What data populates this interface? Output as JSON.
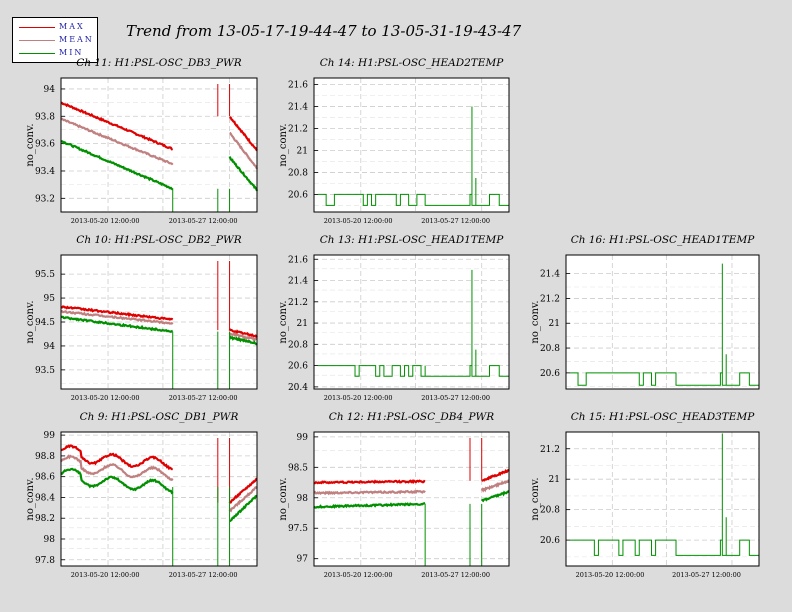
{
  "title": "Trend from 13-05-17-19-44-47 to 13-05-31-19-43-47",
  "legend": [
    {
      "label": "MAX",
      "color": "#e00000"
    },
    {
      "label": "MEAN",
      "color": "#c08080"
    },
    {
      "label": "MIN",
      "color": "#009000"
    }
  ],
  "colors": {
    "max": "#e00000",
    "mean": "#c08080",
    "min": "#009000",
    "background": "#dcdcdc"
  },
  "chart_data": [
    {
      "type": "line",
      "title": "Ch 11: H1:PSL-OSC_DB3_PWR",
      "ylabel": "no_conv.",
      "x_ticks": [
        "2013-05-20 12:00:00",
        "2013-05-27 12:00:00"
      ],
      "y_ticks": [
        "94",
        "93.8",
        "93.6",
        "93.4",
        "93.2"
      ],
      "ylim": [
        93.1,
        94.08
      ],
      "pattern": "decline",
      "grid": true,
      "series": [
        {
          "name": "MAX",
          "from": 93.9,
          "to": 93.56,
          "after_gap": [
            93.8,
            93.55
          ]
        },
        {
          "name": "MEAN",
          "from": 93.78,
          "to": 93.45,
          "after_gap": [
            93.68,
            93.42
          ]
        },
        {
          "name": "MIN",
          "from": 93.62,
          "to": 93.27,
          "after_gap": [
            93.5,
            93.26
          ]
        }
      ]
    },
    {
      "type": "line",
      "title": "Ch 14: H1:PSL-OSC_HEAD2TEMP",
      "ylabel": "no_conv.",
      "x_ticks": [
        "2013-05-20 12:00:00",
        "2013-05-27 12:00:00"
      ],
      "y_ticks": [
        "21.6",
        "21.4",
        "21.2",
        "21",
        "20.8",
        "20.6"
      ],
      "ylim": [
        20.44,
        21.66
      ],
      "pattern": "steps",
      "grid": true,
      "series": [
        {
          "name": "MIN",
          "base": 20.6,
          "low": 20.5,
          "peak": 21.4
        }
      ]
    },
    null,
    {
      "type": "line",
      "title": "Ch 10: H1:PSL-OSC_DB2_PWR",
      "ylabel": "no_conv.",
      "x_ticks": [
        "2013-05-20 12:00:00",
        "2013-05-27 12:00:00"
      ],
      "y_ticks": [
        "95.5",
        "95",
        "94.5",
        "94",
        "93.5"
      ],
      "ylim": [
        93.1,
        95.9
      ],
      "pattern": "decline",
      "grid": true,
      "series": [
        {
          "name": "MAX",
          "from": 94.82,
          "to": 94.55,
          "after_gap": [
            94.33,
            94.2
          ]
        },
        {
          "name": "MEAN",
          "from": 94.72,
          "to": 94.47,
          "after_gap": [
            94.26,
            94.13
          ]
        },
        {
          "name": "MIN",
          "from": 94.6,
          "to": 94.3,
          "after_gap": [
            94.18,
            94.05
          ]
        }
      ]
    },
    {
      "type": "line",
      "title": "Ch 13: H1:PSL-OSC_HEAD1TEMP",
      "ylabel": "no_conv.",
      "x_ticks": [
        "2013-05-20 12:00:00",
        "2013-05-27 12:00:00"
      ],
      "y_ticks": [
        "21.6",
        "21.4",
        "21.2",
        "21",
        "20.8",
        "20.6",
        "20.4"
      ],
      "ylim": [
        20.38,
        21.64
      ],
      "pattern": "steps",
      "grid": true,
      "series": [
        {
          "name": "MIN",
          "base": 20.6,
          "low": 20.5,
          "peak": 21.5
        }
      ]
    },
    {
      "type": "line",
      "title": "Ch 16: H1:PSL-OSC_HEAD1TEMP",
      "ylabel": "no_conv.",
      "x_ticks": [],
      "y_ticks": [
        "21.4",
        "21.2",
        "21",
        "20.8",
        "20.6"
      ],
      "ylim": [
        20.47,
        21.55
      ],
      "pattern": "steps",
      "grid": true,
      "series": [
        {
          "name": "MIN",
          "base": 20.6,
          "low": 20.5,
          "peak": 21.48
        }
      ]
    },
    {
      "type": "line",
      "title": "Ch 9: H1:PSL-OSC_DB1_PWR",
      "ylabel": "no_conv.",
      "x_ticks": [
        "2013-05-20 12:00:00",
        "2013-05-27 12:00:00"
      ],
      "y_ticks": [
        "99",
        "98.8",
        "98.6",
        "98.4",
        "98.2",
        "98",
        "97.8"
      ],
      "ylim": [
        97.74,
        99.03
      ],
      "pattern": "bumpy",
      "grid": true,
      "series": [
        {
          "name": "MAX",
          "from": 98.8,
          "to": 98.72,
          "after_gap": [
            98.35,
            98.58
          ]
        },
        {
          "name": "MEAN",
          "from": 98.7,
          "to": 98.62,
          "after_gap": [
            98.27,
            98.5
          ]
        },
        {
          "name": "MIN",
          "from": 98.58,
          "to": 98.5,
          "after_gap": [
            98.17,
            98.42
          ]
        }
      ]
    },
    {
      "type": "line",
      "title": "Ch 12: H1:PSL-OSC_DB4_PWR",
      "ylabel": "no_conv.",
      "x_ticks": [
        "2013-05-20 12:00:00",
        "2013-05-27 12:00:00"
      ],
      "y_ticks": [
        "99",
        "98.5",
        "98",
        "97.5",
        "97"
      ],
      "ylim": [
        96.88,
        99.08
      ],
      "pattern": "flat",
      "grid": true,
      "series": [
        {
          "name": "MAX",
          "from": 98.25,
          "to": 98.27,
          "after_gap": [
            98.28,
            98.45
          ]
        },
        {
          "name": "MEAN",
          "from": 98.08,
          "to": 98.1,
          "after_gap": [
            98.12,
            98.28
          ]
        },
        {
          "name": "MIN",
          "from": 97.85,
          "to": 97.9,
          "after_gap": [
            97.95,
            98.1
          ]
        }
      ]
    },
    {
      "type": "line",
      "title": "Ch 15: H1:PSL-OSC_HEAD3TEMP",
      "ylabel": "no_conv.",
      "x_ticks": [
        "2013-05-20 12:00:00",
        "2013-05-27 12:00:00"
      ],
      "y_ticks": [
        "21.2",
        "21",
        "20.8",
        "20.6"
      ],
      "ylim": [
        20.43,
        21.31
      ],
      "pattern": "steps",
      "grid": true,
      "series": [
        {
          "name": "MIN",
          "base": 20.6,
          "low": 20.5,
          "peak": 21.3
        }
      ]
    }
  ]
}
